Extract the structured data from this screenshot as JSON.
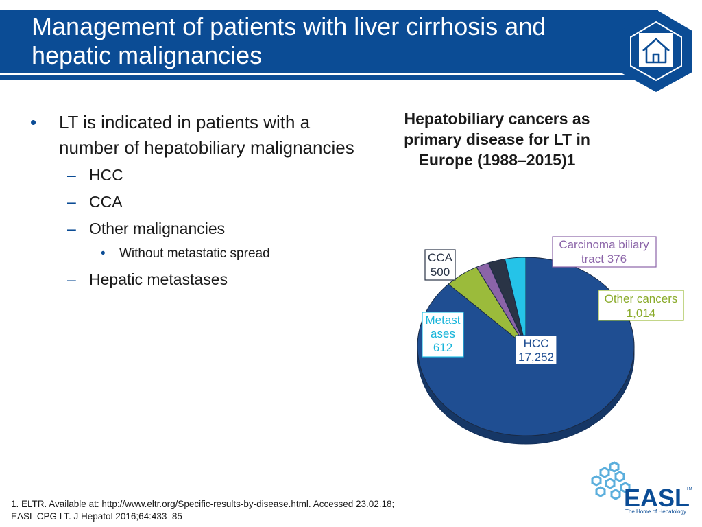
{
  "header": {
    "title_line1": "Management of patients with liver cirrhosis and",
    "title_line2": "hepatic malignancies",
    "home_icon": "home-icon",
    "colors": {
      "bar": "#0b4c95",
      "hex_outer": "#0b4c95",
      "hex_inner": "#ffffff"
    }
  },
  "bullets": {
    "main": "LT is indicated in patients with a number of hepatobiliary malignancies",
    "sub": [
      "HCC",
      "CCA",
      "Other malignancies"
    ],
    "subsub": "Without metastatic spread",
    "last": "Hepatic metastases",
    "marker_main": "•",
    "marker_sub": "–",
    "marker_subsub": "•"
  },
  "chart_data": {
    "type": "pie",
    "title": "Hepatobiliary cancers as primary disease for LT in Europe (1988–2015)1",
    "slices": [
      {
        "label": "HCC",
        "value": 17252,
        "value_text": "17,252",
        "color": "#1f4e92",
        "label_color": "#1f4e92"
      },
      {
        "label": "Other cancers",
        "value": 1014,
        "value_text": "1,014",
        "color": "#9bbb3b",
        "label_color": "#8aab2b"
      },
      {
        "label": "Carcinoma biliary tract",
        "value": 376,
        "value_text": "376",
        "color": "#8b64a8",
        "label_color": "#8b64a8"
      },
      {
        "label": "CCA",
        "value": 500,
        "value_text": "500",
        "color": "#2a3446",
        "label_color": "#2a3446"
      },
      {
        "label": "Metastases",
        "value": 612,
        "value_text": "612",
        "color": "#25c3e8",
        "label_color": "#18b5da"
      }
    ],
    "labels": {
      "hcc": [
        "HCC",
        "17,252"
      ],
      "other": [
        "Other cancers",
        "1,014"
      ],
      "carcinoma": [
        "Carcinoma biliary",
        "tract 376"
      ],
      "cca": [
        "CCA",
        "500"
      ],
      "metastases": [
        "Metast",
        "ases",
        "612"
      ]
    },
    "style": "3d"
  },
  "footnote": {
    "line1": "1. ELTR. Available at: http://www.eltr.org/Specific-results-by-disease.html. Accessed 23.02.18;",
    "line2": "EASL CPG LT. J Hepatol 2016;64:433–85"
  },
  "logo": {
    "icon": "easl-logo",
    "wordmark": "EASL",
    "tm": "TM",
    "tagline": "The Home of Hepatology",
    "colors": {
      "wordmark": "#0b4c95",
      "cells": "#5aaedc"
    }
  }
}
